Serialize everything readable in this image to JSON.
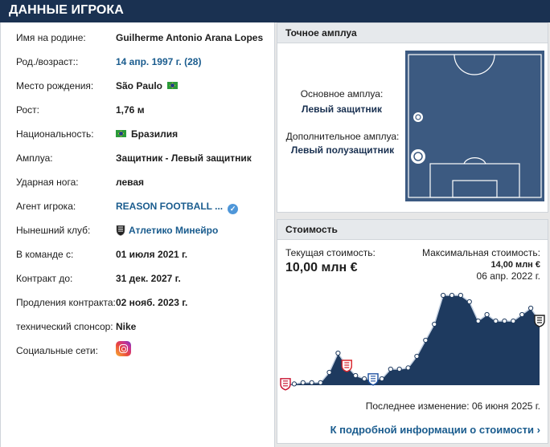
{
  "header": {
    "title": "ДАННЫЕ ИГРОКА"
  },
  "player_info": [
    {
      "label": "Имя на родине:",
      "value": "Guilherme Antonio Arana Lopes"
    },
    {
      "label": "Род./возраст::",
      "value": "14 апр. 1997 г. (28)"
    },
    {
      "label": "Место рождения:",
      "value": "São Paulo"
    },
    {
      "label": "Рост:",
      "value": "1,76 м"
    },
    {
      "label": "Национальность:",
      "value": "Бразилия"
    },
    {
      "label": "Амплуа:",
      "value": "Защитник - Левый защитник"
    },
    {
      "label": "Ударная нога:",
      "value": "левая"
    },
    {
      "label": "Агент игрока:",
      "value": "REASON FOOTBALL ..."
    },
    {
      "label": "Нынешний клуб:",
      "value": "Атлетико Минейро"
    },
    {
      "label": "В команде с:",
      "value": "01 июля 2021 г."
    },
    {
      "label": "Контракт до:",
      "value": "31 дек. 2027 г."
    },
    {
      "label": "Продления контракта:",
      "value": "02 нояб. 2023 г."
    },
    {
      "label": "технический спонсор:",
      "value": "Nike"
    },
    {
      "label": "Социальные сети:",
      "value": ""
    }
  ],
  "icons": {
    "flag": "brazil-flag-icon",
    "verified": "verified-check-icon",
    "club": "club-crest-icon",
    "social": "instagram-icon",
    "arrow": "chevron-right-icon"
  },
  "position_panel": {
    "title": "Точное амплуа",
    "main_label": "Основное амплуа:",
    "main_value": "Левый защитник",
    "secondary_label": "Дополнительное амплуа:",
    "secondary_value": "Левый полузащитник"
  },
  "value_panel": {
    "title": "Стоимость",
    "current_label": "Текущая стоимость:",
    "current_value": "10,00 млн €",
    "max_label": "Максимальная стоимость:",
    "max_value": "14,00 млн €",
    "max_date": "06 апр. 2022 г.",
    "last_change": "Последнее изменение: 06 июня 2025 г.",
    "details_link": "К подробной информации о стоимости"
  },
  "colors": {
    "header": "#1a3151",
    "pitch": "#3c5a81",
    "link": "#1a5c8e",
    "chart": "#1e3a5f"
  },
  "chart_data": {
    "type": "area",
    "title": "Стоимость",
    "unit": "млн €",
    "values": [
      0.15,
      0.2,
      0.4,
      0.4,
      0.4,
      2.0,
      5.0,
      3.0,
      1.5,
      1.0,
      0.9,
      1.0,
      2.5,
      2.5,
      2.7,
      4.5,
      7.0,
      9.5,
      14.0,
      14.0,
      14.0,
      13.0,
      10.0,
      11.0,
      10.0,
      10.0,
      10.0,
      11.0,
      12.0,
      10.0
    ],
    "ylim": [
      0,
      14.5
    ],
    "clubs_icons": [
      "club-crest-icon",
      "club-crest-icon",
      "club-crest-icon",
      "club-crest-icon"
    ]
  }
}
